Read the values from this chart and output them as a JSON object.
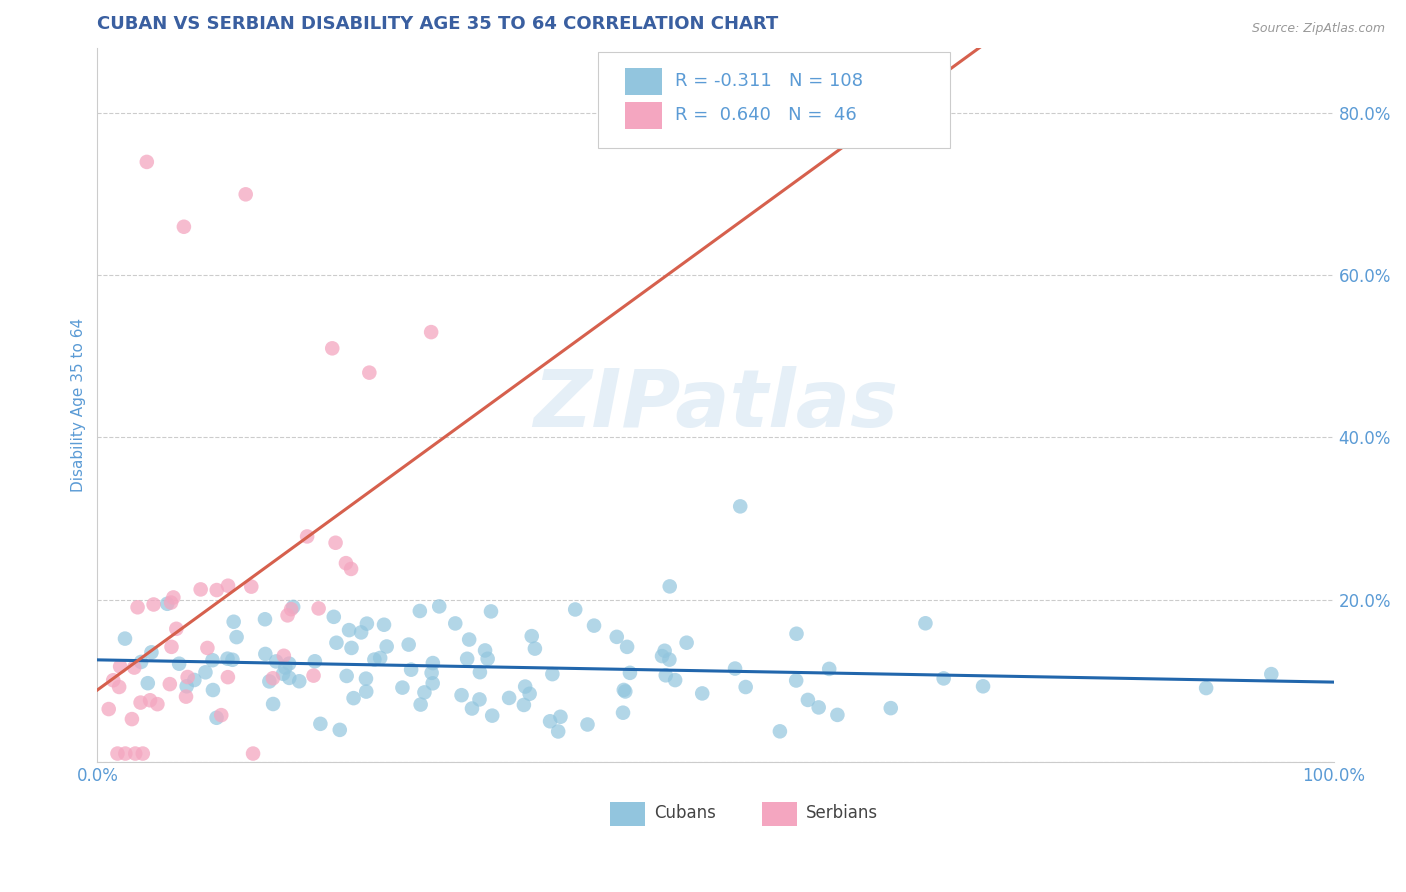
{
  "title": "CUBAN VS SERBIAN DISABILITY AGE 35 TO 64 CORRELATION CHART",
  "source_text": "Source: ZipAtlas.com",
  "ylabel": "Disability Age 35 to 64",
  "xlim": [
    0.0,
    1.0
  ],
  "ylim": [
    0.0,
    0.88
  ],
  "xticks": [
    0.0,
    0.2,
    0.4,
    0.6,
    0.8,
    1.0
  ],
  "yticks": [
    0.0,
    0.2,
    0.4,
    0.6,
    0.8
  ],
  "xticklabels_bottom": [
    "0.0%",
    "",
    "",
    "",
    "",
    "100.0%"
  ],
  "yticklabels_right": [
    "",
    "20.0%",
    "40.0%",
    "60.0%",
    "80.0%"
  ],
  "cuban_color": "#92c5de",
  "serbian_color": "#f4a6c0",
  "cuban_line_color": "#2166ac",
  "serbian_line_color": "#d6604d",
  "cuban_R": -0.311,
  "cuban_N": 108,
  "serbian_R": 0.64,
  "serbian_N": 46,
  "legend_label_cuban": "Cubans",
  "legend_label_serbian": "Serbians",
  "watermark": "ZIPatlas",
  "title_color": "#3a5fa0",
  "axis_color": "#5b9bd5",
  "tick_color": "#5b9bd5",
  "background_color": "#ffffff",
  "grid_color": "#cccccc",
  "title_fontsize": 13,
  "label_fontsize": 11,
  "tick_fontsize": 12,
  "legend_fontsize": 13
}
